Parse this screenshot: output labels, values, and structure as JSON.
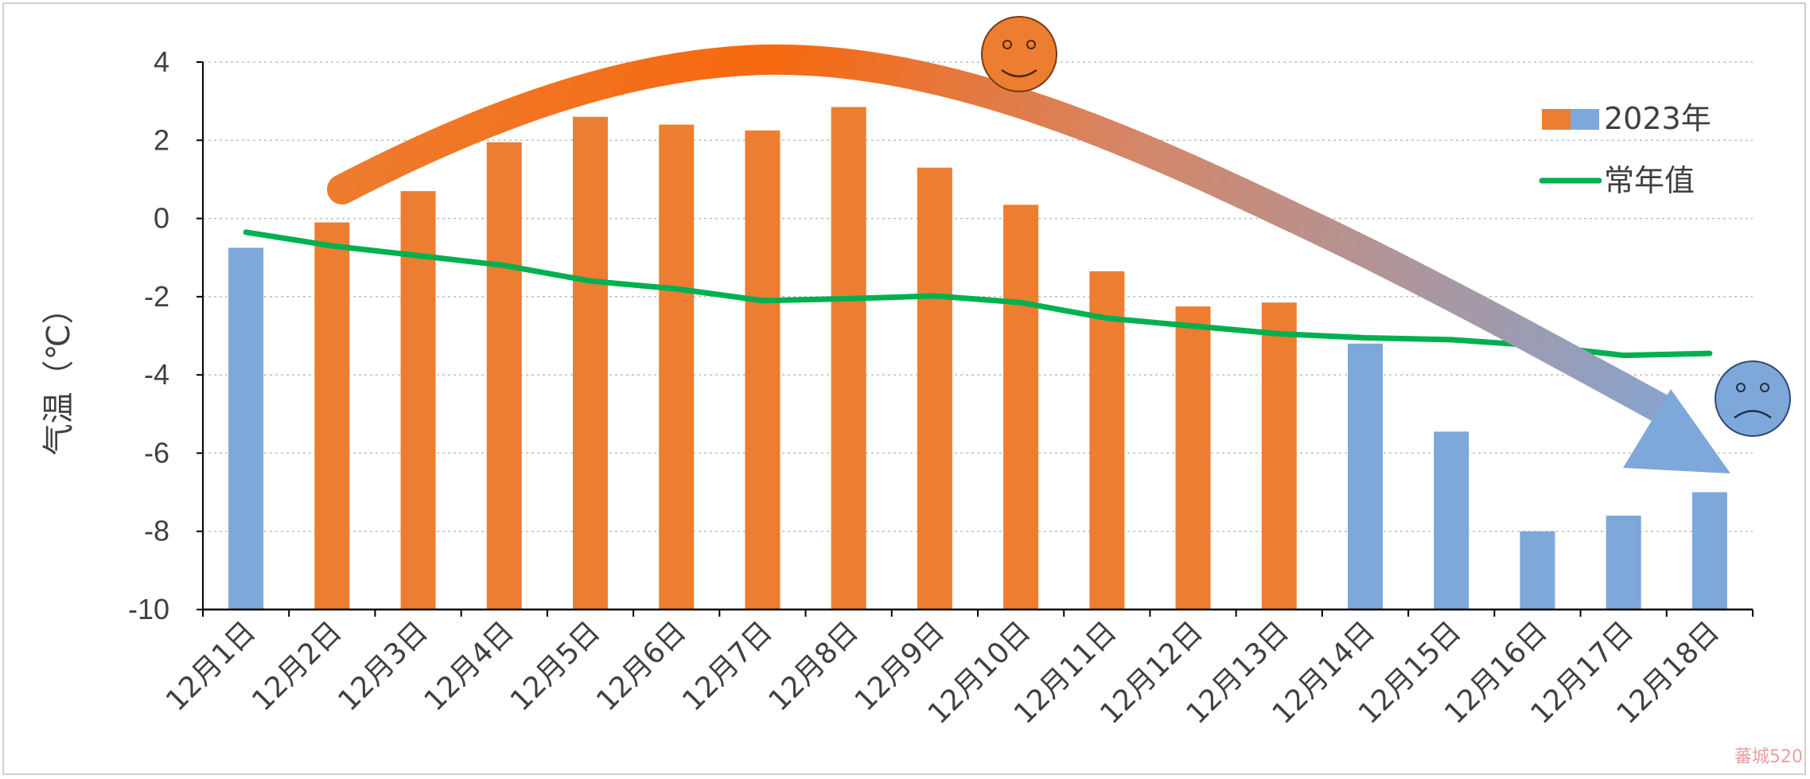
{
  "chart_data": {
    "type": "bar",
    "ylabel": "气温（℃）",
    "ylim": [
      -10,
      4
    ],
    "yticks": [
      4,
      2,
      0,
      -2,
      -4,
      -6,
      -8,
      -10
    ],
    "ytick_labels": [
      "4",
      "2",
      "0",
      "-2",
      "-4",
      "-6",
      "-8",
      "-10"
    ],
    "grid": "horizontal dotted",
    "legend_position": "top-right",
    "categories": [
      "12月1日",
      "12月2日",
      "12月3日",
      "12月4日",
      "12月5日",
      "12月6日",
      "12月7日",
      "12月8日",
      "12月9日",
      "12月10日",
      "12月11日",
      "12月12日",
      "12月13日",
      "12月14日",
      "12月15日",
      "12月16日",
      "12月17日",
      "12月18日"
    ],
    "series": [
      {
        "name": "2023年",
        "kind": "bar",
        "values": [
          -0.75,
          -0.1,
          0.7,
          1.95,
          2.6,
          2.4,
          2.25,
          2.85,
          1.3,
          0.35,
          -1.35,
          -2.25,
          -2.15,
          -3.2,
          -5.45,
          -8.0,
          -7.6,
          -7.0
        ],
        "colors_by_point": [
          "#7ea7da",
          "#ed7d31",
          "#ed7d31",
          "#ed7d31",
          "#ed7d31",
          "#ed7d31",
          "#ed7d31",
          "#ed7d31",
          "#ed7d31",
          "#ed7d31",
          "#ed7d31",
          "#ed7d31",
          "#ed7d31",
          "#7ea7da",
          "#7ea7da",
          "#7ea7da",
          "#7ea7da",
          "#7ea7da"
        ]
      },
      {
        "name": "常年值",
        "kind": "line",
        "color": "#00b050",
        "values": [
          -0.35,
          -0.7,
          -0.95,
          -1.2,
          -1.6,
          -1.8,
          -2.1,
          -2.05,
          -1.98,
          -2.15,
          -2.55,
          -2.75,
          -2.95,
          -3.05,
          -3.1,
          -3.25,
          -3.5,
          -3.45
        ]
      }
    ],
    "colors": {
      "warm": "#ed7d31",
      "cold": "#7ea7da",
      "line": "#00b050"
    },
    "annotations": [
      {
        "type": "trend-arrow",
        "description": "curved arrow from warm to cold",
        "from_color": "#ed7d31",
        "to_color": "#7ea7da"
      },
      {
        "type": "happy-face-icon",
        "color": "#ed7d31"
      },
      {
        "type": "sad-face-icon",
        "color": "#7ea7da"
      }
    ]
  },
  "watermark": {
    "text": "蕃城520"
  }
}
